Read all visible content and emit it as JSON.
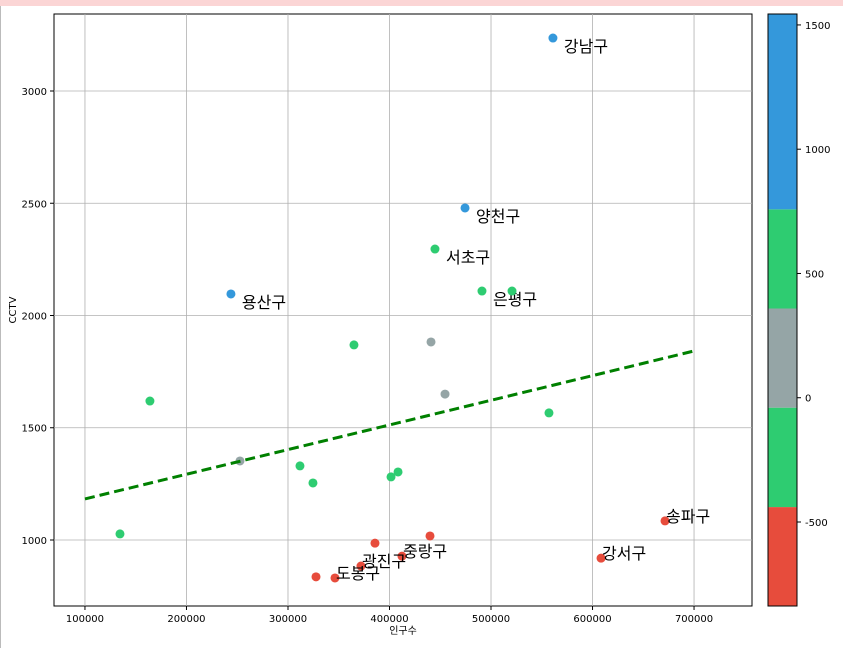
{
  "chart_data": {
    "type": "scatter",
    "xlabel": "인구수",
    "ylabel": "CCTV",
    "x": [
      561000,
      474400,
      444800,
      491100,
      520700,
      243800,
      365000,
      440900,
      454700,
      164000,
      557100,
      252700,
      311800,
      408400,
      401500,
      324600,
      134500,
      671400,
      439900,
      385700,
      608400,
      412300,
      371900,
      346300,
      327600
    ],
    "values": [
      3236,
      2479,
      2296,
      2109,
      2109,
      2096,
      1869,
      1882,
      1650,
      1619,
      1566,
      1352,
      1330,
      1303,
      1281,
      1254,
      1027,
      1085,
      1018,
      986,
      919,
      928,
      884,
      831,
      836
    ],
    "point_colors": [
      "#3498db",
      "#3498db",
      "#2ecc71",
      "#2ecc71",
      "#2ecc71",
      "#3498db",
      "#2ecc71",
      "#95a5a6",
      "#95a5a6",
      "#2ecc71",
      "#2ecc71",
      "#95a5a6",
      "#2ecc71",
      "#2ecc71",
      "#2ecc71",
      "#2ecc71",
      "#2ecc71",
      "#e74c3c",
      "#e74c3c",
      "#e74c3c",
      "#e74c3c",
      "#e74c3c",
      "#e74c3c",
      "#e74c3c",
      "#e74c3c"
    ],
    "labels": [
      "강남구",
      "양천구",
      "서초구",
      "은평구",
      null,
      "용산구",
      null,
      null,
      null,
      null,
      null,
      null,
      null,
      null,
      null,
      null,
      null,
      "송파구",
      null,
      null,
      "강서구",
      "중랑구",
      "광진구",
      "도봉구",
      null
    ],
    "trend": {
      "x": [
        100000,
        700000
      ],
      "values": [
        1183,
        1842
      ],
      "color": "#008000",
      "dashed": true
    },
    "xlim": [
      69500,
      757100
    ],
    "ylim": [
      706,
      3343
    ],
    "xticks": [
      100000,
      200000,
      300000,
      400000,
      500000,
      600000,
      700000
    ],
    "yticks": [
      1000,
      1500,
      2000,
      2500,
      3000
    ],
    "grid": true,
    "colorbar": {
      "lim": [
        -838,
        1544
      ],
      "bounds": [
        -838,
        -440,
        -40,
        359,
        758,
        1544
      ],
      "colors": [
        "#e74c3c",
        "#2ecc71",
        "#95a5a6",
        "#2ecc71",
        "#3498db"
      ],
      "ticks": [
        -500,
        0,
        500,
        1000,
        1500
      ]
    }
  }
}
